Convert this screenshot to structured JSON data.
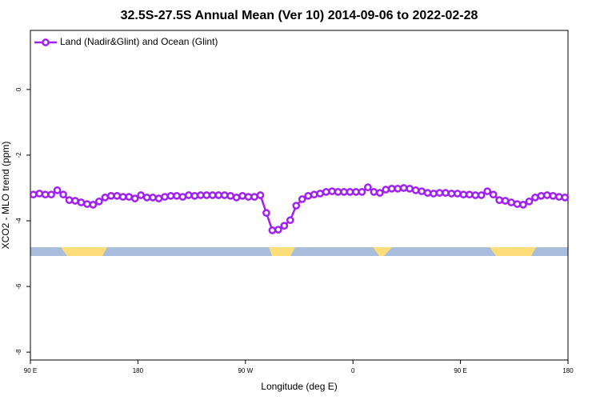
{
  "chart_data": {
    "type": "line",
    "title": "32.5S-27.5S Annual Mean (Ver 10)   2014-09-06 to 2022-02-28",
    "x_label": "Longitude (deg E)",
    "y_label": "XCO2 - MLO trend (ppm)",
    "x": [
      92.5,
      97.5,
      102.5,
      107.5,
      112.5,
      117.5,
      122.5,
      127.5,
      132.5,
      137.5,
      142.5,
      147.5,
      152.5,
      157.5,
      162.5,
      167.5,
      172.5,
      177.5,
      182.5,
      187.5,
      192.5,
      197.5,
      202.5,
      207.5,
      212.5,
      217.5,
      222.5,
      227.5,
      232.5,
      237.5,
      242.5,
      247.5,
      252.5,
      257.5,
      262.5,
      267.5,
      272.5,
      277.5,
      282.5,
      287.5,
      292.5,
      297.5,
      302.5,
      307.5,
      312.5,
      317.5,
      322.5,
      327.5,
      332.5,
      337.5,
      342.5,
      347.5,
      352.5,
      357.5,
      362.5,
      367.5,
      372.5,
      377.5,
      382.5,
      387.5,
      392.5,
      397.5,
      402.5,
      407.5,
      412.5,
      417.5,
      422.5,
      427.5,
      432.5,
      437.5,
      442.5,
      447.5,
      452.5,
      457.5,
      462.5,
      467.5,
      472.5,
      477.5,
      482.5,
      487.5,
      492.5,
      497.5,
      502.5,
      507.5,
      512.5,
      517.5,
      522.5,
      527.5,
      532.5,
      537.5
    ],
    "series": [
      {
        "name": "Land (Nadir&Glint) and Ocean (Glint)",
        "color": "#a020f0",
        "values": [
          -3.2,
          -3.17,
          -3.2,
          -3.2,
          -3.07,
          -3.2,
          -3.37,
          -3.39,
          -3.44,
          -3.49,
          -3.51,
          -3.41,
          -3.29,
          -3.24,
          -3.24,
          -3.27,
          -3.27,
          -3.32,
          -3.22,
          -3.29,
          -3.29,
          -3.32,
          -3.27,
          -3.24,
          -3.24,
          -3.27,
          -3.22,
          -3.24,
          -3.22,
          -3.22,
          -3.22,
          -3.22,
          -3.22,
          -3.24,
          -3.29,
          -3.24,
          -3.27,
          -3.27,
          -3.22,
          -3.76,
          -4.29,
          -4.27,
          -4.15,
          -3.98,
          -3.54,
          -3.34,
          -3.24,
          -3.2,
          -3.17,
          -3.12,
          -3.1,
          -3.12,
          -3.12,
          -3.12,
          -3.12,
          -3.12,
          -2.98,
          -3.12,
          -3.15,
          -3.05,
          -3.02,
          -3.02,
          -3.0,
          -3.02,
          -3.07,
          -3.1,
          -3.15,
          -3.17,
          -3.15,
          -3.15,
          -3.17,
          -3.17,
          -3.2,
          -3.2,
          -3.22,
          -3.22,
          -3.1,
          -3.2,
          -3.37,
          -3.39,
          -3.44,
          -3.49,
          -3.51,
          -3.41,
          -3.29,
          -3.24,
          -3.22,
          -3.24,
          -3.27,
          -3.29
        ]
      }
    ],
    "xlim": [
      90,
      540
    ],
    "xticks": [
      {
        "value": 90,
        "label": "90 E"
      },
      180,
      {
        "value": 270,
        "label": "90 W"
      },
      {
        "value": 360,
        "label": "0"
      },
      {
        "value": 450,
        "label": "90 E"
      },
      {
        "value": 540,
        "label": "180"
      }
    ],
    "ylim": [
      -8.24,
      1.8
    ],
    "yticks": [
      0,
      -2,
      -4,
      -6,
      -8
    ],
    "legend": "top-left"
  }
}
